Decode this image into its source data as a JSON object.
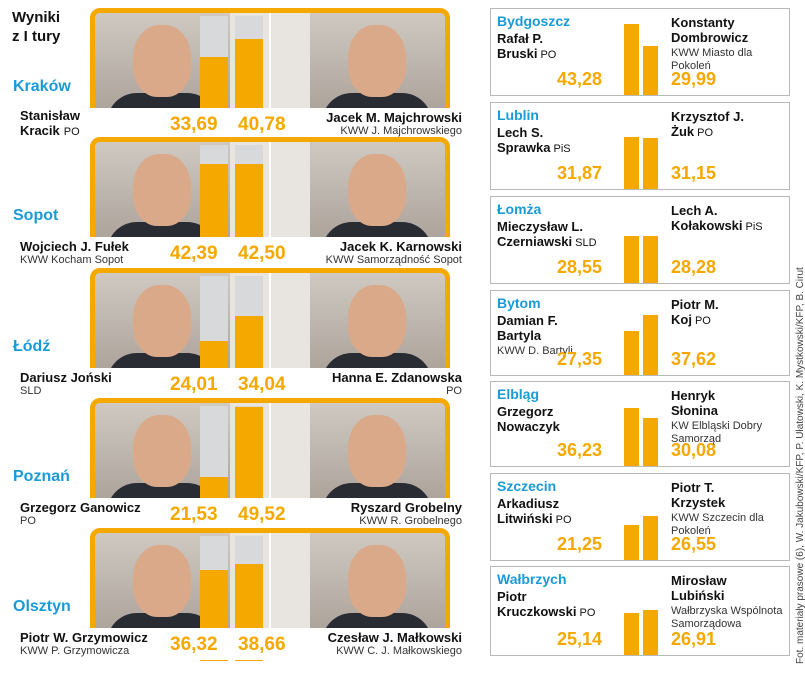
{
  "header": {
    "title_line1": "Wyniki",
    "title_line2": "z I tury"
  },
  "left_cities": [
    {
      "city": "Kraków",
      "cand1": {
        "name1": "Stanisław",
        "name2": "Kracik",
        "party": "PO",
        "value": "33,69",
        "fraction": 0.337
      },
      "cand2": {
        "name1": "Jacek M. Majchrowski",
        "name2": "",
        "party": "KWW J. Majchrowskiego",
        "value": "40,78",
        "fraction": 0.408
      }
    },
    {
      "city": "Sopot",
      "cand1": {
        "name1": "Wojciech J. Fułek",
        "name2": "",
        "party": "KWW Kocham Sopot",
        "value": "42,39",
        "fraction": 0.424
      },
      "cand2": {
        "name1": "Jacek K. Karnowski",
        "name2": "",
        "party": "KWW Samorządność Sopot",
        "value": "42,50",
        "fraction": 0.425
      }
    },
    {
      "city": "Łódź",
      "cand1": {
        "name1": "Dariusz Joński",
        "name2": "",
        "party": "SLD",
        "value": "24,01",
        "fraction": 0.24
      },
      "cand2": {
        "name1": "Hanna E. Zdanowska",
        "name2": "",
        "party": "PO",
        "value": "34,04",
        "fraction": 0.34
      }
    },
    {
      "city": "Poznań",
      "cand1": {
        "name1": "Grzegorz Ganowicz",
        "name2": "",
        "party": "PO",
        "value": "21,53",
        "fraction": 0.215
      },
      "cand2": {
        "name1": "Ryszard Grobelny",
        "name2": "",
        "party": "KWW R. Grobelnego",
        "value": "49,52",
        "fraction": 0.495
      }
    },
    {
      "city": "Olsztyn",
      "cand1": {
        "name1": "Piotr W. Grzymowicz",
        "name2": "",
        "party": "KWW P. Grzymowicza",
        "value": "36,32",
        "fraction": 0.363
      },
      "cand2": {
        "name1": "Czesław J. Małkowski",
        "name2": "",
        "party": "KWW C. J. Małkowskiego",
        "value": "38,66",
        "fraction": 0.387
      }
    }
  ],
  "right_cities": [
    {
      "city": "Bydgoszcz",
      "cand1": {
        "name1": "Rafał P.",
        "name2": "Bruski",
        "party": "PO",
        "value": "43,28",
        "fraction": 0.433
      },
      "cand2": {
        "name1": "Konstanty",
        "name2": "Dombrowicz",
        "party": "KWW Miasto dla Pokoleń",
        "value": "29,99",
        "fraction": 0.3
      }
    },
    {
      "city": "Lublin",
      "cand1": {
        "name1": "Lech S.",
        "name2": "Sprawka",
        "party": "PiS",
        "value": "31,87",
        "fraction": 0.319
      },
      "cand2": {
        "name1": "Krzysztof J.",
        "name2": "Żuk",
        "party": "PO",
        "value": "31,15",
        "fraction": 0.312
      }
    },
    {
      "city": "Łomża",
      "cand1": {
        "name1": "Mieczysław L.",
        "name2": "Czerniawski",
        "party": "SLD",
        "value": "28,55",
        "fraction": 0.286
      },
      "cand2": {
        "name1": "Lech A.",
        "name2": "Kołakowski",
        "party": "PiS",
        "value": "28,28",
        "fraction": 0.283
      }
    },
    {
      "city": "Bytom",
      "cand1": {
        "name1": "Damian F.",
        "name2": "Bartyla",
        "party": "KWW D. Bartyli",
        "value": "27,35",
        "fraction": 0.274
      },
      "cand2": {
        "name1": "Piotr M.",
        "name2": "Koj",
        "party": "PO",
        "value": "37,62",
        "fraction": 0.376
      }
    },
    {
      "city": "Elbląg",
      "cand1": {
        "name1": "Grzegorz",
        "name2": "Nowaczyk",
        "party": "",
        "value": "36,23",
        "fraction": 0.362
      },
      "cand2": {
        "name1": "Henryk",
        "name2": "Słonina",
        "party": "KW Elbląski Dobry Samorząd",
        "value": "30,08",
        "fraction": 0.301
      }
    },
    {
      "city": "Szczecin",
      "cand1": {
        "name1": "Arkadiusz",
        "name2": "Litwiński",
        "party": "PO",
        "value": "21,25",
        "fraction": 0.213
      },
      "cand2": {
        "name1": "Piotr T.",
        "name2": "Krzystek",
        "party": "KWW Szczecin dla Pokoleń",
        "value": "26,55",
        "fraction": 0.266
      }
    },
    {
      "city": "Wałbrzych",
      "cand1": {
        "name1": "Piotr",
        "name2": "Kruczkowski",
        "party": "PO",
        "value": "25,14",
        "fraction": 0.251
      },
      "cand2": {
        "name1": "Mirosław",
        "name2": "Lubiński",
        "party": "Wałbrzyska Wspólnota Samorządowa",
        "value": "26,91",
        "fraction": 0.269
      }
    }
  ],
  "credit": "Fot. materiały prasowe (6), W. Jakubowski/KFP, P. Ułatowski, K. Mystkowski/KFP, B. Cirut",
  "colors": {
    "accent": "#f5a800",
    "city": "#1a9bd7"
  }
}
